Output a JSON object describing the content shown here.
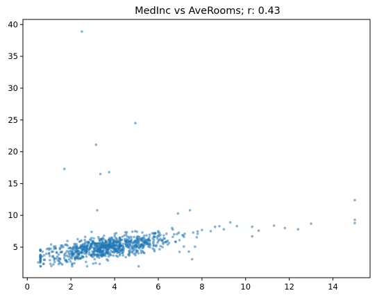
{
  "chart_data": {
    "type": "scatter",
    "title": "MedInc vs AveRooms; r: 0.43",
    "xlabel": "",
    "ylabel": "",
    "xlim": [
      -0.2,
      15.7
    ],
    "ylim": [
      0.2,
      40.8
    ],
    "x_ticks": [
      0,
      2,
      4,
      6,
      8,
      10,
      12,
      14
    ],
    "y_ticks": [
      5,
      10,
      15,
      20,
      25,
      30,
      35,
      40
    ],
    "grid": false,
    "marker_color": "#1f77b4",
    "marker_alpha": 0.55,
    "series": [
      {
        "name": "",
        "points": [
          [
            2.5,
            38.9
          ],
          [
            4.95,
            24.5
          ],
          [
            3.15,
            21.1
          ],
          [
            1.7,
            17.3
          ],
          [
            3.75,
            16.8
          ],
          [
            3.35,
            16.5
          ],
          [
            15.0,
            12.4
          ],
          [
            15.0,
            9.3
          ],
          [
            15.0,
            8.8
          ],
          [
            3.2,
            10.8
          ],
          [
            7.45,
            10.8
          ],
          [
            6.9,
            10.3
          ],
          [
            13.0,
            8.7
          ],
          [
            12.4,
            7.8
          ],
          [
            11.8,
            8.0
          ],
          [
            11.3,
            8.4
          ],
          [
            10.6,
            7.6
          ],
          [
            10.3,
            8.2
          ],
          [
            10.3,
            6.7
          ],
          [
            9.6,
            8.3
          ],
          [
            9.3,
            8.9
          ],
          [
            9.0,
            7.8
          ],
          [
            8.8,
            8.3
          ],
          [
            8.6,
            8.2
          ],
          [
            8.4,
            7.5
          ],
          [
            8.0,
            7.7
          ],
          [
            7.8,
            7.1
          ],
          [
            7.6,
            7.3
          ],
          [
            7.55,
            3.1
          ],
          [
            7.4,
            4.3
          ],
          [
            5.1,
            2.0
          ],
          [
            0.5,
            2.6
          ],
          [
            0.8,
            3.0
          ],
          [
            1.2,
            2.3
          ],
          [
            0.7,
            4.3
          ],
          [
            1.0,
            4.6
          ]
        ],
        "cloud": {
          "count": 820,
          "x_mean": 3.6,
          "x_sd": 1.5,
          "x_min": 0.6,
          "x_max": 7.8,
          "y_intercept": 3.3,
          "y_slope": 0.45,
          "y_sd": 0.85,
          "y_min": 2.0,
          "y_max": 9.5
        }
      }
    ]
  }
}
